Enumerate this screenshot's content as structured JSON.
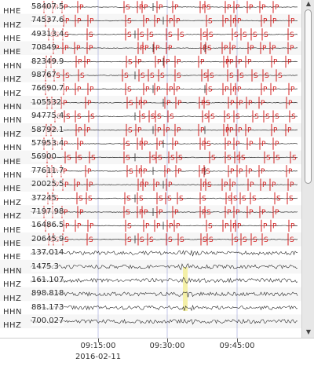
{
  "channels": [
    {
      "comp": "HHE",
      "amp": "58407.5"
    },
    {
      "comp": "HHZ",
      "amp": "74537.6"
    },
    {
      "comp": "HHE",
      "amp": "49313.4"
    },
    {
      "comp": "HHE",
      "amp": "70849"
    },
    {
      "comp": "HHN",
      "amp": "82349.9"
    },
    {
      "comp": "HHZ",
      "amp": "98767"
    },
    {
      "comp": "HHZ",
      "amp": "76690.7"
    },
    {
      "comp": "HHN",
      "amp": "105532"
    },
    {
      "comp": "HHN",
      "amp": "94775.4"
    },
    {
      "comp": "HHZ",
      "amp": "58792.1"
    },
    {
      "comp": "HHN",
      "amp": "57953.4"
    },
    {
      "comp": "HHE",
      "amp": "56900"
    },
    {
      "comp": "HHN",
      "amp": "77611.7"
    },
    {
      "comp": "HHE",
      "amp": "20025.5"
    },
    {
      "comp": "HHZ",
      "amp": "37245"
    },
    {
      "comp": "HHZ",
      "amp": "7197.98"
    },
    {
      "comp": "HHE",
      "amp": "16486.5"
    },
    {
      "comp": "HHE",
      "amp": "20645.9"
    },
    {
      "comp": "HHE",
      "amp": "137.014"
    },
    {
      "comp": "HHN",
      "amp": "1475.3"
    },
    {
      "comp": "HHZ",
      "amp": "161.107"
    },
    {
      "comp": "HHZ",
      "amp": "898.818"
    },
    {
      "comp": "HHN",
      "amp": "881.173"
    },
    {
      "comp": "HHZ",
      "amp": "700.027"
    }
  ],
  "time_axis": {
    "ticks": [
      "09:15:00",
      "09:30:00",
      "09:45:00"
    ],
    "date": "2016-02-11"
  },
  "pick_labels": {
    "p": "P",
    "s": "S"
  },
  "colors": {
    "pick": "#d42020",
    "trace": "#2a2a2a",
    "highlight": "#f4f0a8",
    "gridline": "#9aa0d8"
  },
  "scroll_icons": {
    "up": "scroll-up-arrow",
    "down": "scroll-down-arrow"
  }
}
